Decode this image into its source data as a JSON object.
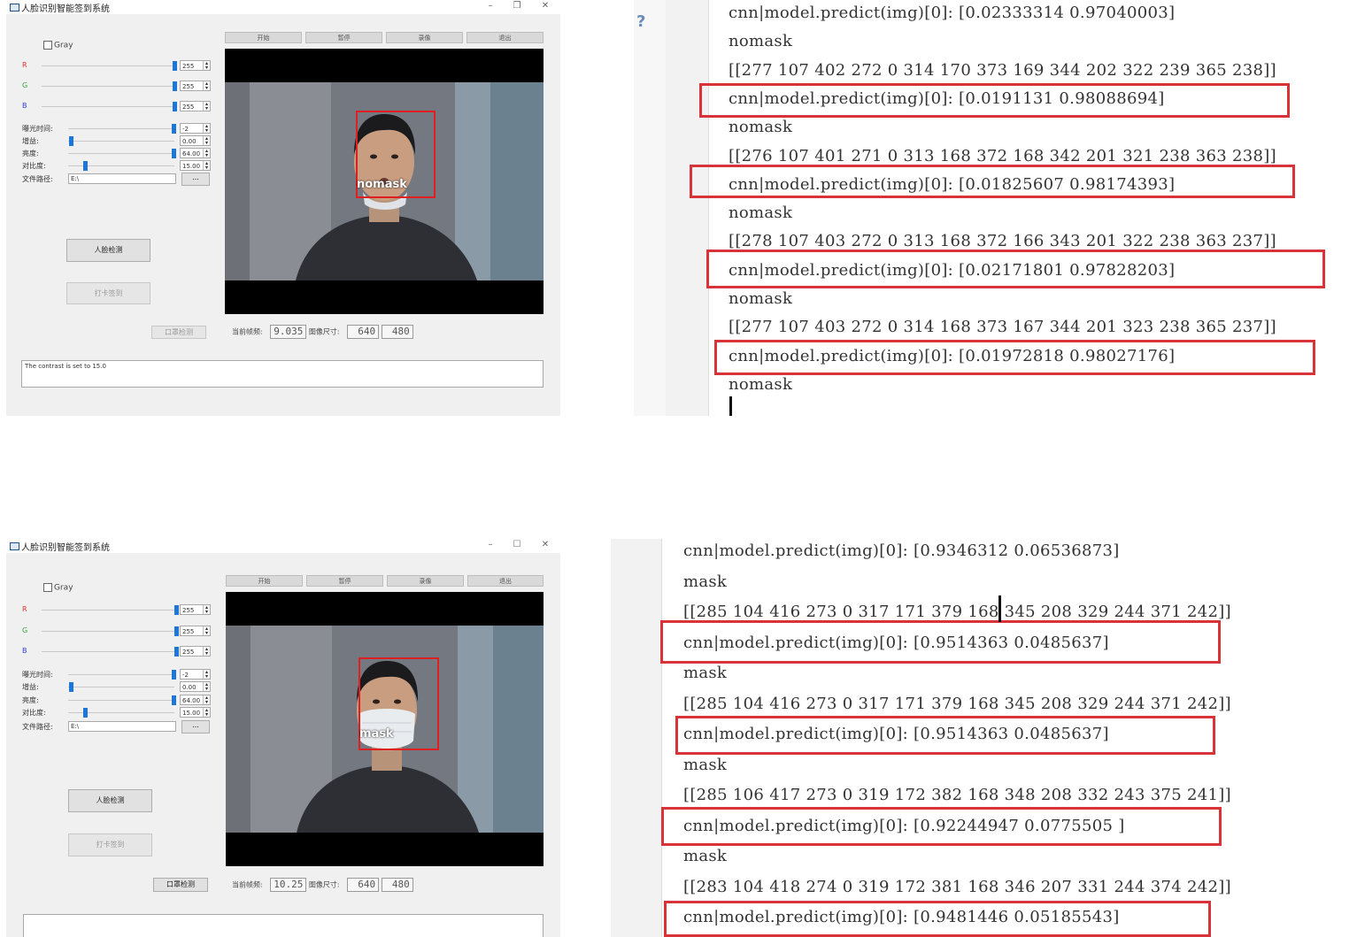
{
  "windows": [
    {
      "title": "人脸识别智能签到系统",
      "controls": {
        "minimize": "–",
        "maximize": "❐",
        "close": "✕"
      },
      "gray_label": "Gray",
      "rgb": [
        {
          "label": "R",
          "value": "255",
          "color": "#e0302a"
        },
        {
          "label": "G",
          "value": "255",
          "color": "#3aa63a"
        },
        {
          "label": "B",
          "value": "255",
          "color": "#2e3fd1"
        }
      ],
      "params": [
        {
          "label": "曝光时间:",
          "value": "-2"
        },
        {
          "label": "增益:",
          "value": "0.00"
        },
        {
          "label": "亮度:",
          "value": "64.00"
        },
        {
          "label": "对比度:",
          "value": "15.00"
        }
      ],
      "path_label": "文件路径:",
      "path_value": "E:\\",
      "browse_label": "...",
      "face_detect_button": "人脸检测",
      "checkin_button": "打卡签到",
      "mask_detect_button": "口罩检测",
      "toolbar": [
        "开始",
        "暂停",
        "录像",
        "退出"
      ],
      "status": {
        "fps_label": "当前帧频:",
        "fps_value": "9.035",
        "size_label": "图像尺寸:",
        "width": "640",
        "height": "480"
      },
      "log_text": "The contrast is set to 15.0",
      "detection_label": "nomask"
    },
    {
      "title": "人脸识别智能签到系统",
      "controls": {
        "minimize": "–",
        "maximize": "☐",
        "close": "✕"
      },
      "gray_label": "Gray",
      "rgb": [
        {
          "label": "R",
          "value": "255",
          "color": "#e0302a"
        },
        {
          "label": "G",
          "value": "255",
          "color": "#3aa63a"
        },
        {
          "label": "B",
          "value": "255",
          "color": "#2e3fd1"
        }
      ],
      "params": [
        {
          "label": "曝光时间:",
          "value": "-2"
        },
        {
          "label": "增益:",
          "value": "0.00"
        },
        {
          "label": "亮度:",
          "value": "64.00"
        },
        {
          "label": "对比度:",
          "value": "15.00"
        }
      ],
      "path_label": "文件路径:",
      "path_value": "E:\\",
      "browse_label": "...",
      "face_detect_button": "人脸检测",
      "checkin_button": "打卡签到",
      "mask_detect_button": "口罩检测",
      "toolbar": [
        "开始",
        "暂停",
        "录像",
        "退出"
      ],
      "status": {
        "fps_label": "当前帧频:",
        "fps_value": "10.25",
        "size_label": "图像尺寸:",
        "width": "640",
        "height": "480"
      },
      "log_text": "",
      "detection_label": "mask"
    }
  ],
  "console_top": {
    "lines": [
      "cnn|model.predict(img)[0]: [0.02333314  0.97040003]",
      "nomask",
      "[[277 107 402 272    0 314 170 373 169 344 202 322 239 365 238]]",
      "cnn|model.predict(img)[0]: [0.0191131   0.98088694]",
      "nomask",
      "[[276 107 401 271    0 313 168 372 168 342 201 321 238 363 238]]",
      "cnn|model.predict(img)[0]: [0.01825607  0.98174393]",
      "nomask",
      "[[278 107 403 272    0 313 168 372 166 343 201 322 238 363 237]]",
      "cnn|model.predict(img)[0]: [0.02171801  0.97828203]",
      "nomask",
      "[[277 107 403 272    0 314 168 373 167 344 201 323 238 365 237]]",
      "cnn|model.predict(img)[0]: [0.01972818  0.98027176]",
      "nomask"
    ]
  },
  "console_bottom": {
    "lines": [
      "cnn|model.predict(img)[0]: [0.9346312   0.06536873]",
      "mask",
      "[[285 104 416 273    0 317 171 379 168 345 208 329 244 371 242]]",
      "cnn|model.predict(img)[0]: [0.9514363  0.0485637]",
      "mask",
      "[[285 104 416 273    0 317 171 379 168 345 208 329 244 371 242]]",
      "cnn|model.predict(img)[0]: [0.9514363  0.0485637]",
      "mask",
      "[[285 106 417 273    0 319 172 382 168 348 208 332 243 375 241]]",
      "cnn|model.predict(img)[0]: [0.92244947  0.0775505 ]",
      "mask",
      "[[283 104 418 274    0 319 172 381 168 346 207 331 244 374 242]]",
      "cnn|model.predict(img)[0]: [0.9481446   0.05185543]"
    ]
  }
}
